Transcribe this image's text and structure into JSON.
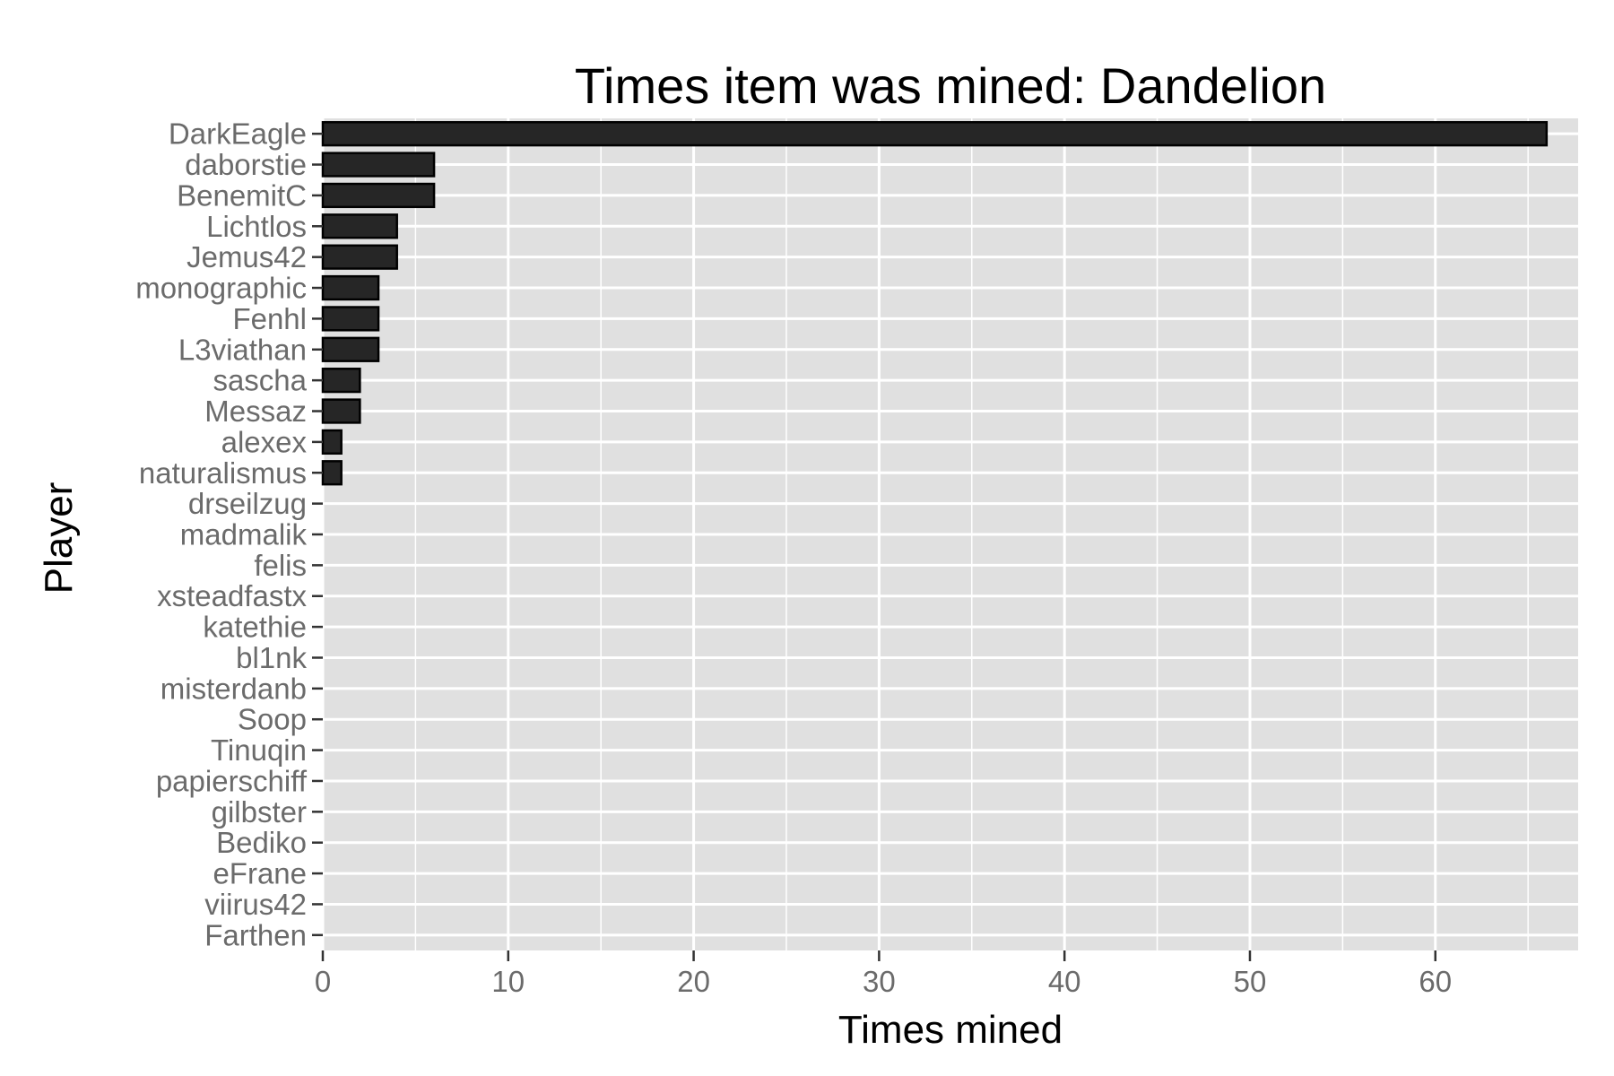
{
  "chart_data": {
    "type": "bar",
    "orientation": "horizontal",
    "title": "Times item was mined: Dandelion",
    "xlabel": "Times mined",
    "ylabel": "Player",
    "xlim": [
      0,
      67.7
    ],
    "xticks": [
      0,
      10,
      20,
      30,
      40,
      50,
      60
    ],
    "grid": true,
    "legend": "none",
    "colors": {
      "panel": "#e0e0e0",
      "gridline": "#ffffff",
      "bar_fill": "#262626",
      "bar_stroke": "#000000",
      "tick_label": "#6b6b6b",
      "tick_mark": "#333333"
    },
    "categories": [
      "DarkEagle",
      "daborstie",
      "BenemitC",
      "Lichtlos",
      "Jemus42",
      "monographic",
      "Fenhl",
      "L3viathan",
      "sascha",
      "Messaz",
      "alexex",
      "naturalismus",
      "drseilzug",
      "madmalik",
      "felis",
      "xsteadfastx",
      "katethie",
      "bl1nk",
      "misterdanb",
      "Soop",
      "Tinuqin",
      "papierschiff",
      "gilbster",
      "Bediko",
      "eFrane",
      "viirus42",
      "Farthen"
    ],
    "values": [
      66,
      6,
      6,
      4,
      4,
      3,
      3,
      3,
      2,
      2,
      1,
      1,
      0,
      0,
      0,
      0,
      0,
      0,
      0,
      0,
      0,
      0,
      0,
      0,
      0,
      0,
      0
    ]
  }
}
